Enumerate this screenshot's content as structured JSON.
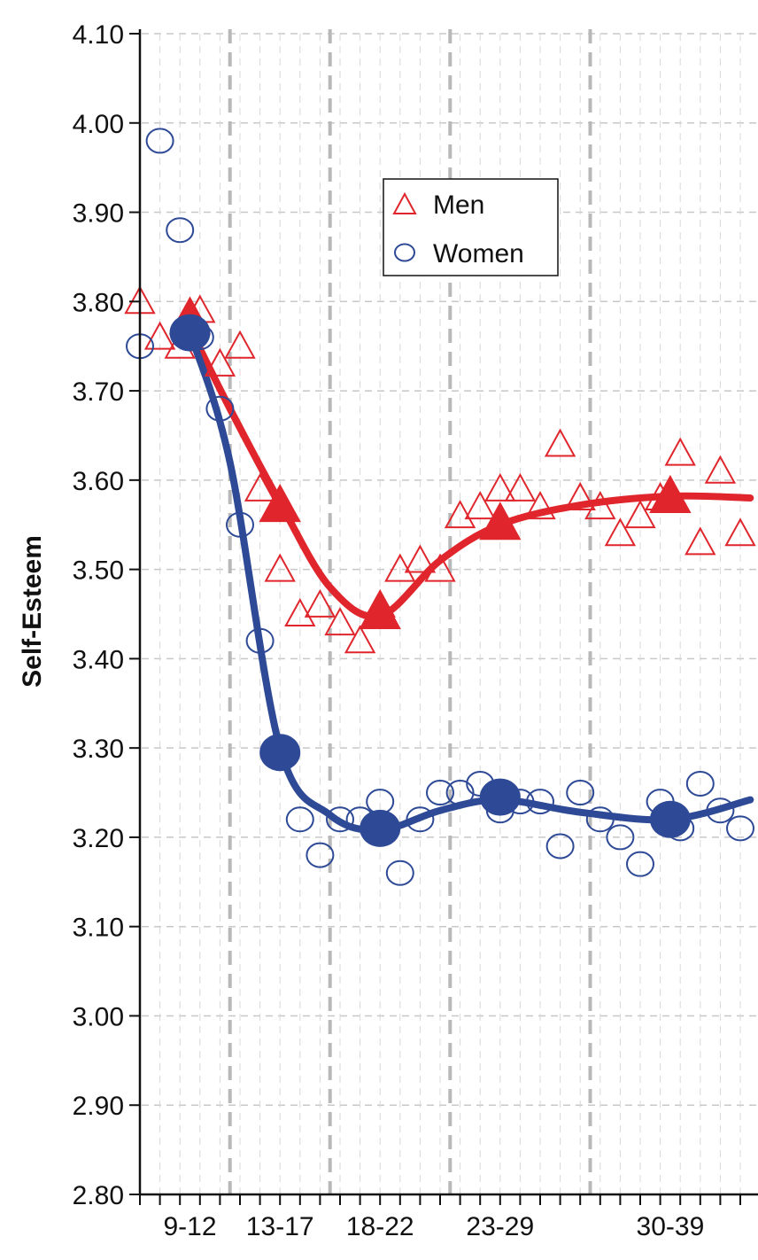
{
  "chart_data": {
    "type": "scatter",
    "title": "",
    "xlabel": "",
    "ylabel": "Self-Esteem",
    "ylim": [
      2.8,
      4.1
    ],
    "y_ticks": [
      "2.80",
      "2.90",
      "3.00",
      "3.10",
      "3.20",
      "3.30",
      "3.40",
      "3.50",
      "3.60",
      "3.70",
      "3.80",
      "3.90",
      "4.00",
      "4.10"
    ],
    "x_range": [
      8,
      38.5
    ],
    "age_groups": [
      {
        "label": "9-12",
        "center": 10.5
      },
      {
        "label": "13-17",
        "center": 15
      },
      {
        "label": "18-22",
        "center": 20
      },
      {
        "label": "23-29",
        "center": 26
      },
      {
        "label": "30-39",
        "center": 34.5
      }
    ],
    "group_dividers": [
      12.5,
      17.5,
      23.5,
      30.5
    ],
    "grid": true,
    "legend": {
      "position": "top-center",
      "entries": [
        "Men",
        "Women"
      ]
    },
    "colors": {
      "men": "#e0262c",
      "women": "#2e4a96",
      "grid": "#c8c8c8",
      "divider": "#b8b8b8"
    },
    "series": [
      {
        "name": "Men",
        "scatter_x": [
          8,
          9,
          10,
          11,
          12,
          13,
          14,
          15,
          16,
          17,
          18,
          19,
          20,
          21,
          22,
          23,
          24,
          25,
          26,
          27,
          28,
          29,
          30,
          31,
          32,
          33,
          34,
          35,
          36,
          37,
          38
        ],
        "scatter_y": [
          3.8,
          3.76,
          3.75,
          3.79,
          3.73,
          3.75,
          3.59,
          3.5,
          3.45,
          3.46,
          3.44,
          3.42,
          3.46,
          3.5,
          3.51,
          3.5,
          3.56,
          3.57,
          3.59,
          3.59,
          3.57,
          3.64,
          3.58,
          3.57,
          3.54,
          3.56,
          3.58,
          3.63,
          3.53,
          3.61,
          3.54
        ],
        "mean_x": [
          10.5,
          15,
          20,
          26,
          34.5
        ],
        "mean_y": [
          3.78,
          3.57,
          3.45,
          3.55,
          3.58
        ],
        "curve_x": [
          10.5,
          12.5,
          15,
          17.5,
          20,
          23,
          26,
          30,
          34.5,
          38.5
        ],
        "curve_y": [
          3.77,
          3.68,
          3.575,
          3.48,
          3.448,
          3.51,
          3.55,
          3.572,
          3.582,
          3.58
        ]
      },
      {
        "name": "Women",
        "scatter_x": [
          8,
          9,
          10,
          11,
          12,
          13,
          14,
          15,
          16,
          17,
          18,
          19,
          20,
          21,
          22,
          23,
          24,
          25,
          26,
          27,
          28,
          29,
          30,
          31,
          32,
          33,
          34,
          35,
          36,
          37,
          38
        ],
        "scatter_y": [
          3.75,
          3.98,
          3.88,
          3.76,
          3.68,
          3.55,
          3.42,
          3.3,
          3.22,
          3.18,
          3.22,
          3.22,
          3.24,
          3.16,
          3.22,
          3.25,
          3.25,
          3.26,
          3.23,
          3.24,
          3.24,
          3.19,
          3.25,
          3.22,
          3.2,
          3.17,
          3.24,
          3.21,
          3.26,
          3.23,
          3.21
        ],
        "mean_x": [
          10.5,
          15,
          20,
          26,
          34.5
        ],
        "mean_y": [
          3.765,
          3.295,
          3.21,
          3.245,
          3.22
        ],
        "curve_x": [
          10.5,
          12.5,
          15,
          17.5,
          20,
          23,
          26,
          30,
          34.5,
          38.5
        ],
        "curve_y": [
          3.765,
          3.62,
          3.3,
          3.225,
          3.208,
          3.23,
          3.242,
          3.228,
          3.22,
          3.242
        ]
      }
    ]
  }
}
